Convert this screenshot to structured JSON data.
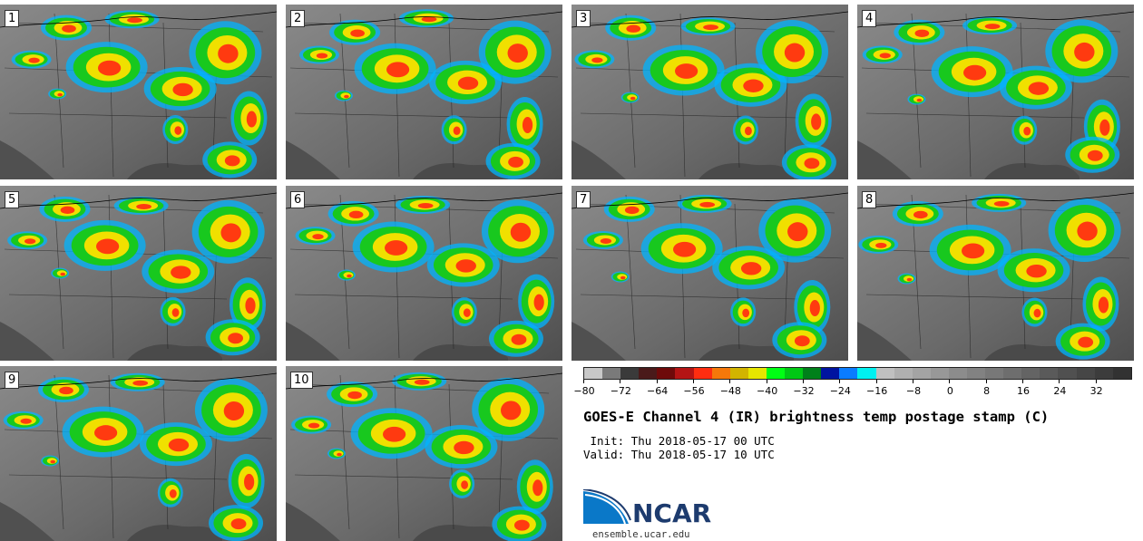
{
  "panels": [
    "1",
    "2",
    "3",
    "4",
    "5",
    "6",
    "7",
    "8",
    "9",
    "10"
  ],
  "colorbar": {
    "colors": [
      "#c8c8c8",
      "#7a7a7a",
      "#3a3a3a",
      "#4a1a1a",
      "#6e0a0a",
      "#b41414",
      "#ff2d10",
      "#f5780a",
      "#d2b400",
      "#e6e600",
      "#00ff14",
      "#00c814",
      "#00801a",
      "#0014a0",
      "#0a7cff",
      "#00f0f0",
      "#c0c0c0",
      "#b0b0b0",
      "#a4a4a4",
      "#989898",
      "#8c8c8c",
      "#828282",
      "#787878",
      "#6e6e6e",
      "#646464",
      "#5a5a5a",
      "#505050",
      "#464646",
      "#3c3c3c",
      "#323232"
    ],
    "tick_labels": [
      "−80",
      "−72",
      "−64",
      "−56",
      "−48",
      "−40",
      "−32",
      "−24",
      "−16",
      "−8",
      "0",
      "8",
      "16",
      "24",
      "32"
    ]
  },
  "title": "GOES-E Channel 4 (IR) brightness temp postage stamp (C)",
  "init_line": " Init: Thu 2018-05-17 00 UTC",
  "valid_line": "Valid: Thu 2018-05-17 10 UTC",
  "logo_text": "NCAR",
  "url": "ensemble.ucar.edu"
}
